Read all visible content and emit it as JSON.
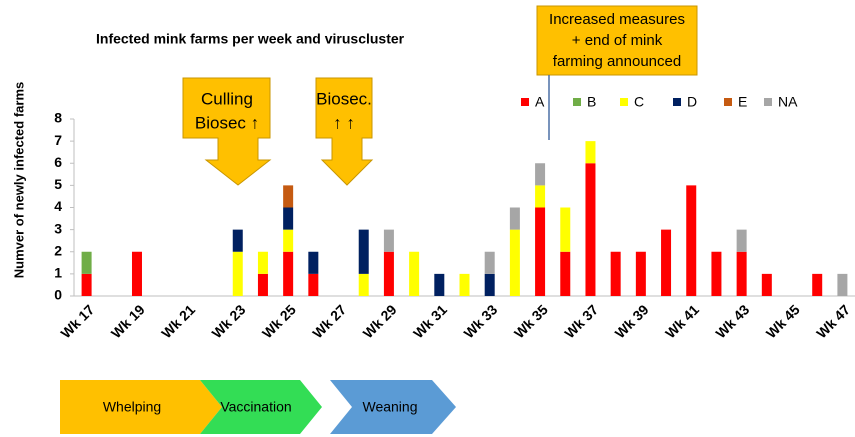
{
  "chart_data": {
    "type": "stacked_bar",
    "title": "Infected mink farms per week and viruscluster",
    "y_label": "Numver of newly infected farms",
    "categories": [
      "Wk 17",
      null,
      "Wk 19",
      null,
      "Wk 21",
      null,
      "Wk 23",
      null,
      "Wk 25",
      null,
      "Wk 27",
      null,
      "Wk 29",
      null,
      "Wk 31",
      null,
      "Wk 33",
      null,
      "Wk 35",
      null,
      "Wk 37",
      null,
      "Wk 39",
      null,
      "Wk 41",
      null,
      "Wk 43",
      null,
      "Wk 45",
      null,
      "Wk 47"
    ],
    "series": [
      {
        "name": "A",
        "color": "#ff0000",
        "values": [
          1,
          0,
          2,
          0,
          0,
          0,
          0,
          1,
          2,
          1,
          0,
          0,
          2,
          0,
          0,
          0,
          0,
          0,
          4,
          2,
          6,
          2,
          2,
          3,
          5,
          2,
          2,
          1,
          0,
          1,
          0
        ]
      },
      {
        "name": "B",
        "color": "#70ad47",
        "values": [
          1,
          0,
          0,
          0,
          0,
          0,
          0,
          0,
          0,
          0,
          0,
          0,
          0,
          0,
          0,
          0,
          0,
          0,
          0,
          0,
          0,
          0,
          0,
          0,
          0,
          0,
          0,
          0,
          0,
          0,
          0
        ]
      },
      {
        "name": "C",
        "color": "#ffff00",
        "values": [
          0,
          0,
          0,
          0,
          0,
          0,
          2,
          1,
          1,
          0,
          0,
          1,
          0,
          2,
          0,
          1,
          0,
          3,
          1,
          2,
          1,
          0,
          0,
          0,
          0,
          0,
          0,
          0,
          0,
          0,
          0
        ]
      },
      {
        "name": "D",
        "color": "#002060",
        "values": [
          0,
          0,
          0,
          0,
          0,
          0,
          1,
          0,
          1,
          1,
          0,
          2,
          0,
          0,
          1,
          0,
          1,
          0,
          0,
          0,
          0,
          0,
          0,
          0,
          0,
          0,
          0,
          0,
          0,
          0,
          0
        ]
      },
      {
        "name": "E",
        "color": "#c55a11",
        "values": [
          0,
          0,
          0,
          0,
          0,
          0,
          0,
          0,
          1,
          0,
          0,
          0,
          0,
          0,
          0,
          0,
          0,
          0,
          0,
          0,
          0,
          0,
          0,
          0,
          0,
          0,
          0,
          0,
          0,
          0,
          0
        ]
      },
      {
        "name": "NA",
        "color": "#a6a6a6",
        "values": [
          0,
          0,
          0,
          0,
          0,
          0,
          0,
          0,
          0,
          0,
          0,
          0,
          1,
          0,
          0,
          0,
          1,
          1,
          1,
          0,
          0,
          0,
          0,
          0,
          0,
          0,
          1,
          0,
          0,
          0,
          1
        ]
      }
    ],
    "ylim": [
      0,
      8
    ],
    "yticks": [
      0,
      1,
      2,
      3,
      4,
      5,
      6,
      7,
      8
    ],
    "grid": false,
    "legend": "top-right",
    "annotations": [
      {
        "lines": [
          "Culling",
          "Biosec ↑"
        ]
      },
      {
        "lines": [
          "Biosec.",
          "↑ ↑"
        ]
      },
      {
        "lines": [
          "Increased measures",
          "+ end of mink",
          "farming announced"
        ]
      }
    ],
    "phases": [
      "Whelping",
      "Vaccination",
      "Weaning"
    ]
  }
}
